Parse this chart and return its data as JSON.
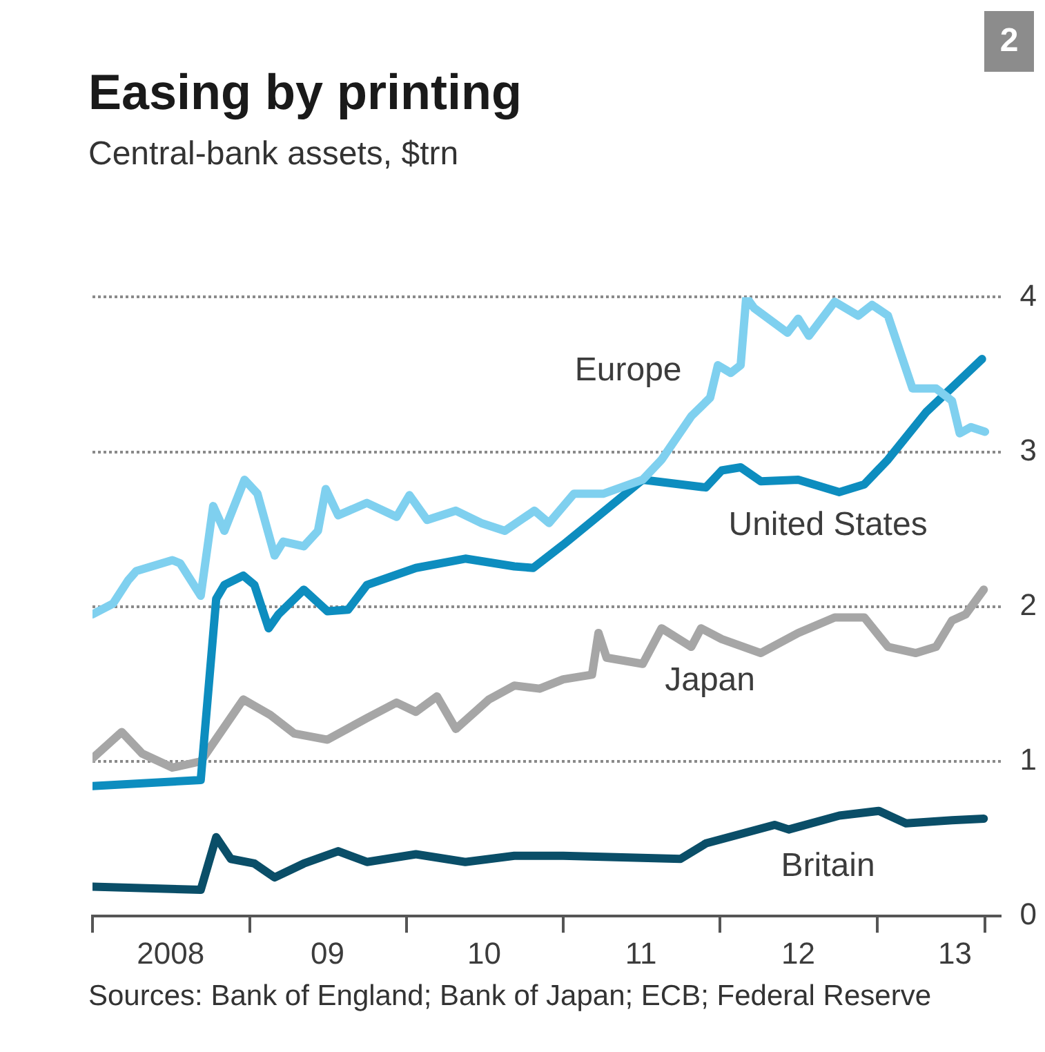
{
  "chart_data": {
    "type": "line",
    "title": "Easing by printing",
    "subtitle": "Central-bank assets, $trn",
    "annotations": [
      "2",
      "Sources: Bank of England; Bank of Japan; ECB; Federal Reserve"
    ],
    "xlim": [
      "2008-01-01",
      "2013-10-15"
    ],
    "ylim": [
      0,
      4
    ],
    "xticks": [
      {
        "value": "2008-01-01",
        "label": null
      },
      {
        "value": "2008-07-01",
        "label": "2008"
      },
      {
        "value": "2009-01-01",
        "label": null
      },
      {
        "value": "2009-07-01",
        "label": "09"
      },
      {
        "value": "2010-01-01",
        "label": null
      },
      {
        "value": "2010-07-01",
        "label": "10"
      },
      {
        "value": "2011-01-01",
        "label": null
      },
      {
        "value": "2011-07-01",
        "label": "11"
      },
      {
        "value": "2012-01-01",
        "label": null
      },
      {
        "value": "2012-07-01",
        "label": "12"
      },
      {
        "value": "2013-01-01",
        "label": null
      },
      {
        "value": "2013-07-01",
        "label": "13"
      },
      {
        "value": "2013-09-09",
        "label": null
      }
    ],
    "yticks": [
      0,
      1,
      2,
      3,
      4
    ],
    "grid": "y",
    "legend": false,
    "marker": "none",
    "line_style": "solid",
    "series": [
      {
        "name": "Europe",
        "color": "#7fd0ef",
        "x": [
          "2008-01-01",
          "2008-02-18",
          "2008-03-24",
          "2008-04-12",
          "2008-07-05",
          "2008-07-23",
          "2008-09-09",
          "2008-10-08",
          "2008-11-03",
          "2008-12-20",
          "2009-01-19",
          "2009-02-28",
          "2009-03-20",
          "2009-05-07",
          "2009-06-09",
          "2009-06-27",
          "2009-07-26",
          "2009-10-01",
          "2009-12-09",
          "2010-01-08",
          "2010-02-18",
          "2010-04-26",
          "2010-06-24",
          "2010-08-18",
          "2010-10-26",
          "2010-11-29",
          "2011-01-26",
          "2011-04-05",
          "2011-07-05",
          "2011-08-18",
          "2011-10-26",
          "2011-12-09",
          "2011-12-27",
          "2012-01-26",
          "2012-02-18",
          "2012-03-02",
          "2012-03-20",
          "2012-06-06",
          "2012-07-01",
          "2012-07-26",
          "2012-09-24",
          "2012-11-18",
          "2012-12-20",
          "2013-01-26",
          "2013-02-18",
          "2013-03-24",
          "2013-05-18",
          "2013-06-24",
          "2013-07-12",
          "2013-08-07",
          "2013-09-09"
        ],
        "values": [
          1.95,
          2.02,
          2.17,
          2.23,
          2.3,
          2.28,
          2.07,
          2.65,
          2.49,
          2.82,
          2.73,
          2.33,
          2.42,
          2.39,
          2.49,
          2.76,
          2.59,
          2.67,
          2.58,
          2.72,
          2.56,
          2.62,
          2.54,
          2.49,
          2.62,
          2.54,
          2.73,
          2.73,
          2.82,
          2.95,
          3.23,
          3.35,
          3.56,
          3.51,
          3.56,
          4.0,
          3.93,
          3.77,
          3.86,
          3.75,
          3.97,
          3.88,
          3.95,
          3.88,
          3.69,
          3.41,
          3.41,
          3.33,
          3.12,
          3.16,
          3.13
        ]
      },
      {
        "name": "United States",
        "color": "#0d8dbf",
        "x": [
          "2008-01-01",
          "2008-09-09",
          "2008-10-15",
          "2008-11-03",
          "2008-12-17",
          "2009-01-12",
          "2009-02-14",
          "2009-03-09",
          "2009-05-07",
          "2009-07-01",
          "2009-08-18",
          "2009-10-01",
          "2010-01-23",
          "2010-05-18",
          "2010-09-09",
          "2010-10-23",
          "2011-01-01",
          "2011-07-05",
          "2011-11-29",
          "2012-01-05",
          "2012-02-18",
          "2012-04-05",
          "2012-07-01",
          "2012-10-05",
          "2012-12-02",
          "2013-01-26",
          "2013-04-26",
          "2013-09-02"
        ],
        "values": [
          0.84,
          0.88,
          2.05,
          2.14,
          2.2,
          2.14,
          1.86,
          1.95,
          2.11,
          1.97,
          1.98,
          2.14,
          2.25,
          2.31,
          2.26,
          2.25,
          2.4,
          2.82,
          2.77,
          2.88,
          2.9,
          2.81,
          2.82,
          2.74,
          2.79,
          2.95,
          3.26,
          3.6
        ]
      },
      {
        "name": "Japan",
        "color": "#a6a6a6",
        "x": [
          "2008-01-01",
          "2008-03-09",
          "2008-04-26",
          "2008-07-05",
          "2008-09-09",
          "2008-12-17",
          "2009-02-18",
          "2009-04-15",
          "2009-07-01",
          "2009-10-01",
          "2009-12-09",
          "2010-01-23",
          "2010-03-13",
          "2010-04-26",
          "2010-07-12",
          "2010-09-09",
          "2010-11-07",
          "2011-01-01",
          "2011-03-09",
          "2011-03-24",
          "2011-04-12",
          "2011-07-05",
          "2011-08-18",
          "2011-10-26",
          "2011-11-18",
          "2012-01-05",
          "2012-04-05",
          "2012-07-01",
          "2012-09-24",
          "2012-12-02",
          "2013-01-26",
          "2013-04-01",
          "2013-05-18",
          "2013-06-24",
          "2013-07-26",
          "2013-09-06"
        ],
        "values": [
          1.02,
          1.19,
          1.05,
          0.96,
          1.0,
          1.4,
          1.3,
          1.18,
          1.14,
          1.28,
          1.38,
          1.32,
          1.42,
          1.21,
          1.4,
          1.49,
          1.47,
          1.53,
          1.56,
          1.83,
          1.67,
          1.63,
          1.86,
          1.74,
          1.86,
          1.79,
          1.7,
          1.83,
          1.93,
          1.93,
          1.74,
          1.7,
          1.74,
          1.91,
          1.95,
          2.11
        ]
      },
      {
        "name": "Britain",
        "color": "#0a4e68",
        "x": [
          "2008-01-01",
          "2008-09-09",
          "2008-10-15",
          "2008-11-18",
          "2009-01-12",
          "2009-02-28",
          "2009-05-07",
          "2009-07-26",
          "2009-10-01",
          "2010-01-23",
          "2010-05-18",
          "2010-09-09",
          "2011-01-01",
          "2011-10-01",
          "2011-11-29",
          "2012-05-07",
          "2012-06-09",
          "2012-10-05",
          "2013-01-05",
          "2013-03-09",
          "2013-06-24",
          "2013-09-06"
        ],
        "values": [
          0.19,
          0.17,
          0.51,
          0.37,
          0.34,
          0.25,
          0.34,
          0.42,
          0.35,
          0.4,
          0.35,
          0.39,
          0.39,
          0.37,
          0.47,
          0.59,
          0.56,
          0.65,
          0.68,
          0.6,
          0.62,
          0.63
        ]
      }
    ]
  }
}
